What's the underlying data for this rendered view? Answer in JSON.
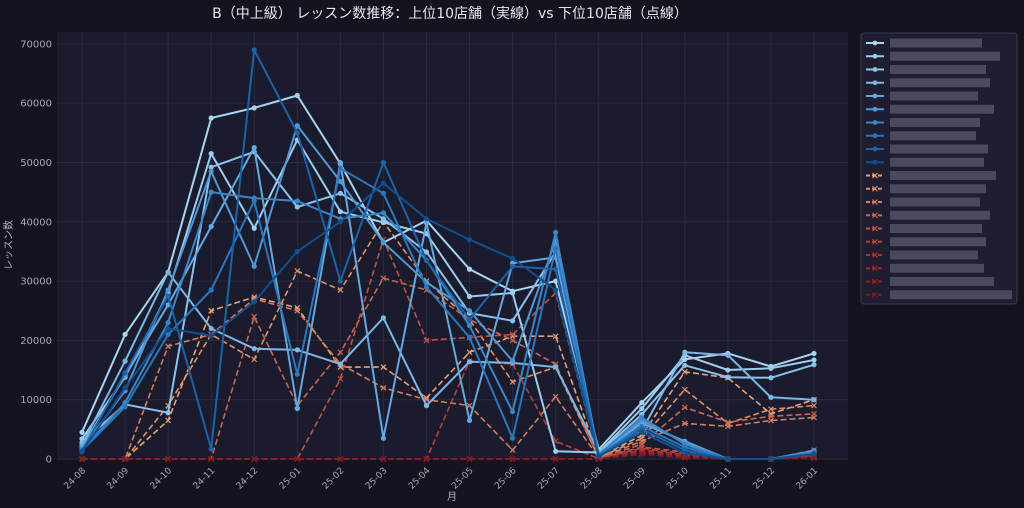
{
  "chart_data": {
    "type": "line",
    "title": "B（中上級） レッスン数推移：上位10店舗（実線）vs 下位10店舗（点線）",
    "xlabel": "月",
    "ylabel": "レッスン数",
    "categories": [
      "24-08",
      "24-09",
      "24-10",
      "24-11",
      "24-12",
      "25-01",
      "25-02",
      "25-03",
      "25-04",
      "25-05",
      "25-06",
      "25-07",
      "25-08",
      "25-09",
      "25-10",
      "25-11",
      "25-12",
      "26-01"
    ],
    "ylim": [
      0,
      72000
    ],
    "yticks": [
      0,
      10000,
      20000,
      30000,
      40000,
      50000,
      60000,
      70000
    ],
    "grid": true,
    "legend_position": "right, outside plot",
    "legend_note": "series names are blurred / unreadable in the image",
    "series": [
      {
        "style": "solid",
        "marker": "dot",
        "color": "#a8d4f0",
        "values": [
          4500,
          21000,
          31500,
          57500,
          59200,
          61300,
          49800,
          36500,
          40200,
          32000,
          28300,
          30000,
          1600,
          9500,
          16800,
          17800,
          15600,
          17800
        ]
      },
      {
        "style": "solid",
        "marker": "dot",
        "color": "#9dcdee",
        "values": [
          3400,
          13800,
          28000,
          51500,
          38900,
          53800,
          41700,
          39900,
          38000,
          27400,
          28000,
          1300,
          1100,
          8500,
          17500,
          15000,
          15300,
          16700
        ]
      },
      {
        "style": "solid",
        "marker": "dot",
        "color": "#8cc2ea",
        "values": [
          2800,
          9200,
          7800,
          49200,
          51800,
          42500,
          44800,
          40500,
          34900,
          24600,
          23300,
          34900,
          1000,
          7500,
          15800,
          13800,
          13700,
          15900
        ]
      },
      {
        "style": "solid",
        "marker": "dot",
        "color": "#7cb7e5",
        "values": [
          2400,
          16500,
          31500,
          22000,
          18600,
          18400,
          16000,
          23800,
          9000,
          16400,
          16200,
          15500,
          1200,
          4800,
          18000,
          17500,
          10400,
          10000
        ]
      },
      {
        "style": "solid",
        "marker": "dot",
        "color": "#66a8dd",
        "values": [
          2100,
          14000,
          26000,
          39200,
          52500,
          8500,
          50000,
          3500,
          39800,
          6500,
          33000,
          34000,
          900,
          6000,
          3000,
          0,
          0,
          1400
        ]
      },
      {
        "style": "solid",
        "marker": "dot",
        "color": "#5298d3",
        "values": [
          1800,
          11500,
          28500,
          48500,
          32500,
          56200,
          46800,
          36500,
          29800,
          25000,
          16500,
          36800,
          800,
          6500,
          2800,
          0,
          0,
          1300
        ]
      },
      {
        "style": "solid",
        "marker": "dot",
        "color": "#3b86c6",
        "values": [
          1500,
          9500,
          23000,
          45000,
          44000,
          43500,
          40500,
          41500,
          33500,
          22500,
          8000,
          38200,
          700,
          7000,
          2500,
          0,
          0,
          1200
        ]
      },
      {
        "style": "solid",
        "marker": "dot",
        "color": "#2c77bb",
        "values": [
          1400,
          8800,
          21000,
          28500,
          43500,
          14300,
          49000,
          44800,
          29000,
          20500,
          3500,
          35500,
          600,
          5500,
          2000,
          0,
          0,
          1000
        ]
      },
      {
        "style": "solid",
        "marker": "dot",
        "color": "#1d63a8",
        "values": [
          1300,
          14500,
          27500,
          1700,
          69000,
          55000,
          30000,
          50000,
          33500,
          23500,
          32500,
          32000,
          500,
          5000,
          1500,
          0,
          0,
          900
        ]
      },
      {
        "style": "solid",
        "marker": "dot",
        "color": "#124f8f",
        "values": [
          1200,
          12000,
          22000,
          20800,
          26500,
          35000,
          40000,
          46500,
          40500,
          37000,
          33800,
          28500,
          400,
          4500,
          1000,
          0,
          0,
          800
        ]
      },
      {
        "style": "dashed",
        "marker": "x",
        "color": "#e8a274",
        "values": [
          0,
          0,
          6500,
          25000,
          27300,
          25500,
          15500,
          15500,
          10300,
          18000,
          20700,
          20700,
          300,
          4000,
          14700,
          13700,
          7600,
          10000
        ]
      },
      {
        "style": "dashed",
        "marker": "x",
        "color": "#e09068",
        "values": [
          0,
          0,
          9000,
          21000,
          16800,
          31700,
          28500,
          40000,
          30000,
          23500,
          13000,
          15500,
          200,
          3500,
          11700,
          6000,
          8400,
          9000
        ]
      },
      {
        "style": "dashed",
        "marker": "x",
        "color": "#d67c5d",
        "values": [
          0,
          0,
          19000,
          21000,
          27000,
          25000,
          16000,
          12000,
          10000,
          9000,
          1500,
          10500,
          200,
          3000,
          6000,
          5500,
          6500,
          7000
        ]
      },
      {
        "style": "dashed",
        "marker": "x",
        "color": "#cc6652",
        "values": [
          0,
          0,
          0,
          0,
          24000,
          9000,
          18000,
          30500,
          28500,
          23500,
          20000,
          16000,
          100,
          2500,
          8700,
          6200,
          7200,
          7600
        ]
      },
      {
        "style": "dashed",
        "marker": "x",
        "color": "#c25248",
        "values": [
          0,
          0,
          0,
          0,
          0,
          0,
          13500,
          37000,
          20000,
          20500,
          21000,
          28000,
          100,
          2000,
          1200,
          0,
          0,
          1500
        ]
      },
      {
        "style": "dashed",
        "marker": "x",
        "color": "#b8403e",
        "values": [
          0,
          0,
          0,
          0,
          0,
          0,
          0,
          0,
          0,
          16500,
          16000,
          3000,
          50,
          1800,
          900,
          0,
          0,
          600
        ]
      },
      {
        "style": "dashed",
        "marker": "x",
        "color": "#ae3234",
        "values": [
          0,
          0,
          0,
          0,
          0,
          0,
          0,
          0,
          0,
          0,
          0,
          0,
          0,
          1500,
          700,
          0,
          0,
          400
        ]
      },
      {
        "style": "dashed",
        "marker": "x",
        "color": "#a3262c",
        "values": [
          0,
          0,
          0,
          0,
          0,
          0,
          0,
          0,
          0,
          0,
          0,
          0,
          0,
          1200,
          500,
          0,
          0,
          300
        ]
      },
      {
        "style": "dashed",
        "marker": "x",
        "color": "#961e26",
        "values": [
          0,
          0,
          0,
          0,
          0,
          0,
          0,
          0,
          0,
          0,
          0,
          0,
          0,
          1000,
          300,
          0,
          0,
          200
        ]
      },
      {
        "style": "dashed",
        "marker": "x",
        "color": "#8a1820",
        "values": [
          0,
          0,
          0,
          0,
          0,
          0,
          0,
          0,
          0,
          0,
          0,
          0,
          0,
          800,
          200,
          0,
          0,
          100
        ]
      }
    ]
  },
  "colors": {
    "background": "#14141e",
    "plot_background": "#1b1b2e",
    "grid": "#2a2a40",
    "legend_background": "#1e1e30",
    "legend_border": "#3a3a50",
    "legend_blur": "#5a5a6c"
  }
}
